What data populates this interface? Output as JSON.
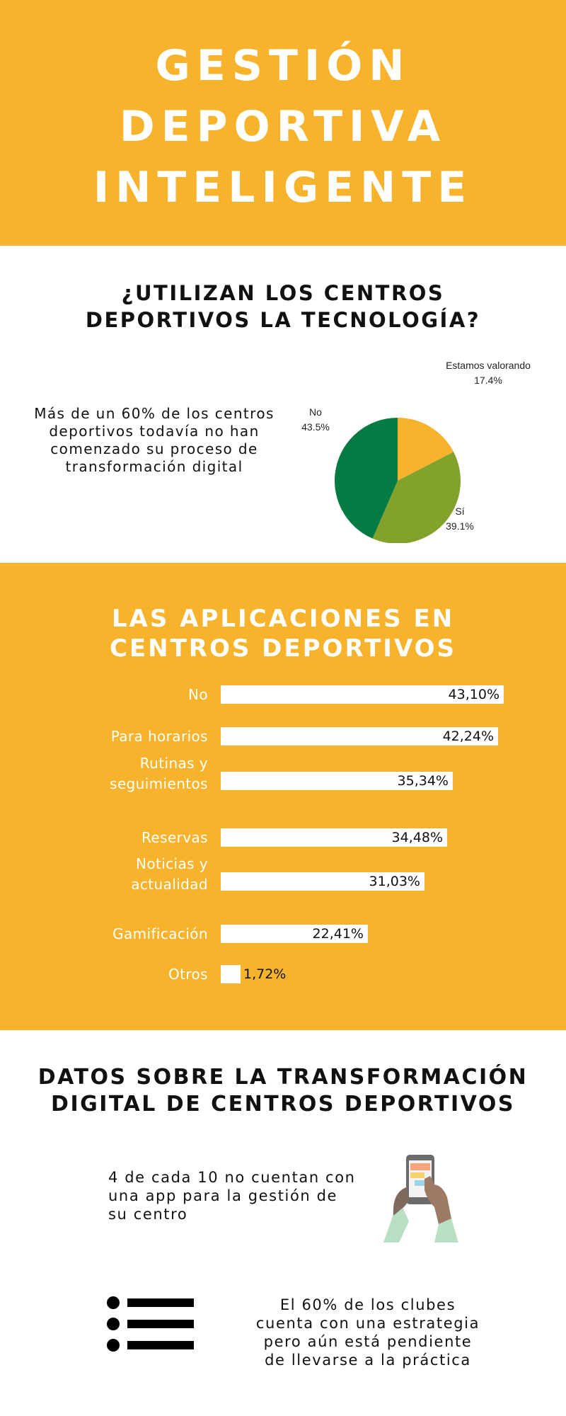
{
  "hero": {
    "title_lines": [
      "GESTIÓN",
      "DEPORTIVA",
      "INTELIGENTE"
    ]
  },
  "tech_section": {
    "heading_lines": [
      "¿UTILIZAN LOS CENTROS",
      "DEPORTIVOS LA TECNOLOGÍA?"
    ],
    "description_lines": [
      "Más de un 60% de los centros",
      "deportivos todavía no han",
      "comenzado su proceso de",
      "transformación digital"
    ]
  },
  "apps_section": {
    "heading_lines": [
      "LAS APLICACIONES EN",
      "CENTROS DEPORTIVOS"
    ]
  },
  "facts_section": {
    "heading_lines": [
      "DATOS SOBRE LA TRANSFORMACIÓN",
      "DIGITAL DE CENTROS DEPORTIVOS"
    ],
    "fact1_lines": [
      "4 de cada 10 no cuentan con",
      "una app para la gestión de",
      "su centro"
    ],
    "fact1_icon": "phone-in-hands-icon",
    "fact2_lines": [
      "El 60% de los clubes",
      "cuenta con una estrategia",
      "pero aún está pendiente",
      "de llevarse a la práctica"
    ],
    "fact2_icon": "list-icon"
  },
  "colors": {
    "brand_yellow": "#f7b32b",
    "pie_no": "#037b43",
    "pie_si": "#83a22b",
    "pie_valorando": "#f7b32b",
    "white": "#ffffff"
  },
  "chart_data": [
    {
      "type": "pie",
      "slices": [
        {
          "label": "Estamos valorando",
          "value": 17.4,
          "display": "17.4%"
        },
        {
          "label": "Sí",
          "value": 39.1,
          "display": "39.1%"
        },
        {
          "label": "No",
          "value": 43.5,
          "display": "43.5%"
        }
      ]
    },
    {
      "type": "bar",
      "orientation": "horizontal",
      "categories": [
        [
          "No"
        ],
        [
          "Para horarios"
        ],
        [
          "Rutinas y",
          "seguimientos"
        ],
        [
          "Reservas"
        ],
        [
          "Noticias y",
          "actualidad"
        ],
        [
          "Gamificación"
        ],
        [
          "Otros"
        ]
      ],
      "values": [
        43.1,
        42.24,
        35.34,
        34.48,
        31.03,
        22.41,
        1.72
      ],
      "value_labels": [
        "43,10%",
        "42,24%",
        "35,34%",
        "34,48%",
        "31,03%",
        "22,41%",
        "1,72%"
      ]
    }
  ]
}
